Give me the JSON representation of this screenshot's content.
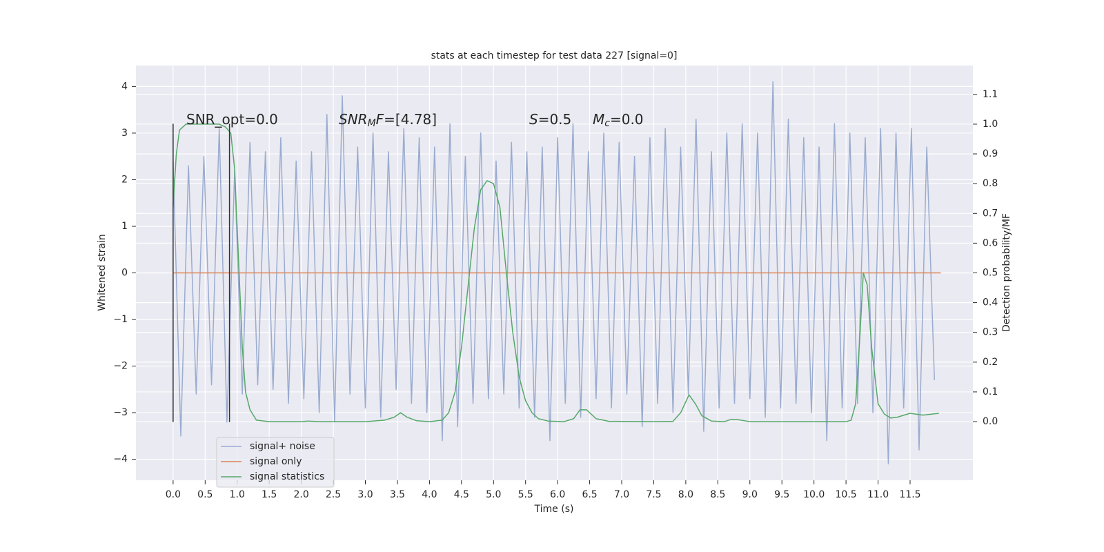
{
  "chart_data": {
    "type": "line",
    "title": "stats at each timestep for test data 227 [signal=0]",
    "x_label": "Time (s)",
    "y_label": "Whitened strain",
    "y2_label": "Detection probability/MF",
    "xlim": [
      -0.58,
      12.48
    ],
    "ylim": [
      -4.45,
      4.45
    ],
    "y2lim": [
      -0.197,
      1.197
    ],
    "grid": true,
    "background": "#eaeaf2",
    "legend": "lower left",
    "xticks": [
      {
        "value": 0,
        "label": "0.0"
      },
      0.5,
      {
        "value": 1,
        "label": "1.0"
      },
      1.5,
      {
        "value": 2,
        "label": "2.0"
      },
      2.5,
      {
        "value": 3,
        "label": "3.0"
      },
      3.5,
      {
        "value": 4,
        "label": "4.0"
      },
      4.5,
      {
        "value": 5,
        "label": "5.0"
      },
      5.5,
      {
        "value": 6,
        "label": "6.0"
      },
      6.5,
      {
        "value": 7,
        "label": "7.0"
      },
      7.5,
      {
        "value": 8,
        "label": "8.0"
      },
      8.5,
      {
        "value": 9,
        "label": "9.0"
      },
      9.5,
      {
        "value": 10,
        "label": "10.0"
      },
      10.5,
      {
        "value": 11,
        "label": "11.0"
      },
      11.5
    ],
    "yticks": [
      {
        "value": -4,
        "label": "−4"
      },
      {
        "value": -3,
        "label": "−3"
      },
      {
        "value": -2,
        "label": "−2"
      },
      {
        "value": -1,
        "label": "−1"
      },
      0,
      1,
      2,
      3,
      4
    ],
    "y2ticks": [
      {
        "value": 0,
        "label": "0.0"
      },
      0.1,
      0.2,
      0.3,
      0.4,
      0.5,
      0.6,
      0.7,
      0.8,
      0.9,
      {
        "value": 1,
        "label": "1.0"
      },
      1.1
    ],
    "annotations": [
      {
        "parts": [
          {
            "text": "SNR_opt=0.0"
          }
        ]
      },
      {
        "parts": [
          {
            "text": "SNR",
            "style": "italic"
          },
          {
            "text": "M",
            "style": "sub"
          },
          {
            "text": "F",
            "style": "italic"
          },
          {
            "text": "=[4.78]"
          }
        ]
      },
      {
        "parts": [
          {
            "text": "S",
            "style": "italic"
          },
          {
            "text": "=0.5"
          }
        ]
      },
      {
        "parts": [
          {
            "text": "M",
            "style": "italic"
          },
          {
            "text": "c",
            "style": "sub"
          },
          {
            "text": "=0.0"
          }
        ]
      }
    ],
    "markers": {
      "x": [
        0,
        0.88
      ],
      "y": [
        -3.2,
        3.2
      ],
      "color": "#333333"
    },
    "series": [
      {
        "name": "signal+ noise",
        "color": "#9aaccf",
        "x": [
          0,
          0.12,
          0.24,
          0.36,
          0.48,
          0.6,
          0.72,
          0.84,
          0.96,
          1.08,
          1.2,
          1.32,
          1.44,
          1.56,
          1.68,
          1.8,
          1.92,
          2.04,
          2.16,
          2.28,
          2.4,
          2.52,
          2.64,
          2.76,
          2.88,
          3,
          3.12,
          3.24,
          3.36,
          3.48,
          3.6,
          3.72,
          3.84,
          3.96,
          4.08,
          4.2,
          4.32,
          4.44,
          4.56,
          4.68,
          4.8,
          4.92,
          5.04,
          5.16,
          5.28,
          5.4,
          5.52,
          5.64,
          5.76,
          5.88,
          6,
          6.12,
          6.24,
          6.36,
          6.48,
          6.6,
          6.72,
          6.84,
          6.96,
          7.08,
          7.2,
          7.32,
          7.44,
          7.56,
          7.68,
          7.8,
          7.92,
          8.04,
          8.16,
          8.28,
          8.4,
          8.52,
          8.64,
          8.76,
          8.88,
          9,
          9.12,
          9.24,
          9.36,
          9.48,
          9.6,
          9.72,
          9.84,
          9.96,
          10.08,
          10.2,
          10.32,
          10.44,
          10.56,
          10.68,
          10.8,
          10.92,
          11.04,
          11.16,
          11.28,
          11.4,
          11.52,
          11.64,
          11.76,
          11.88
        ],
        "values": [
          2.4,
          -3.5,
          2.3,
          -2.6,
          2.5,
          -2.4,
          3.1,
          -3.2,
          2.2,
          -2.6,
          2.8,
          -2.4,
          2.6,
          -2.5,
          2.9,
          -2.8,
          2.4,
          -2.7,
          2.6,
          -3.0,
          3.4,
          -3.2,
          3.8,
          -2.6,
          2.7,
          -2.9,
          3.0,
          -3.1,
          2.6,
          -2.5,
          3.1,
          -2.8,
          2.9,
          -3.0,
          2.7,
          -3.6,
          3.2,
          -3.3,
          2.5,
          -2.8,
          3.0,
          -2.7,
          2.4,
          -2.6,
          2.8,
          -2.9,
          2.6,
          -3.1,
          2.7,
          -3.6,
          2.9,
          -2.8,
          3.2,
          -3.1,
          2.6,
          -2.7,
          3.0,
          -2.9,
          2.8,
          -2.6,
          2.5,
          -3.3,
          2.9,
          -2.8,
          3.1,
          -3.0,
          2.7,
          -2.6,
          3.3,
          -3.4,
          2.6,
          -2.9,
          3.0,
          -2.8,
          3.2,
          -2.7,
          3.0,
          -3.1,
          4.1,
          -2.9,
          3.3,
          -2.8,
          2.9,
          -3.0,
          2.7,
          -3.6,
          3.2,
          -2.9,
          3.0,
          -2.8,
          2.9,
          -3.0,
          3.1,
          -4.1,
          3.0,
          -2.9,
          3.1,
          -3.8,
          2.7,
          -2.3
        ]
      },
      {
        "name": "signal only",
        "color": "#dd8452",
        "x": [
          0,
          11.98
        ],
        "values": [
          0,
          0
        ]
      },
      {
        "name": "signal statistics",
        "color": "#55a868",
        "axis": "y2",
        "x": [
          0,
          0.05,
          0.1,
          0.2,
          0.35,
          0.55,
          0.72,
          0.82,
          0.9,
          0.96,
          1.02,
          1.08,
          1.13,
          1.2,
          1.3,
          1.5,
          2.0,
          2.1,
          2.3,
          3.0,
          3.3,
          3.45,
          3.55,
          3.65,
          3.8,
          4.0,
          4.2,
          4.3,
          4.4,
          4.5,
          4.6,
          4.7,
          4.8,
          4.9,
          5.0,
          5.1,
          5.2,
          5.3,
          5.4,
          5.5,
          5.6,
          5.7,
          5.85,
          6.1,
          6.25,
          6.35,
          6.45,
          6.6,
          6.8,
          7.5,
          7.8,
          7.92,
          8.05,
          8.15,
          8.25,
          8.4,
          8.6,
          8.7,
          8.8,
          9.0,
          9.5,
          10.0,
          10.5,
          10.58,
          10.65,
          10.72,
          10.77,
          10.83,
          10.9,
          11.0,
          11.1,
          11.2,
          11.3,
          11.5,
          11.7,
          11.95
        ],
        "values": [
          0.72,
          0.9,
          0.98,
          1.0,
          1.0,
          1.0,
          1.0,
          0.99,
          0.97,
          0.85,
          0.55,
          0.25,
          0.1,
          0.04,
          0.005,
          0.0,
          0.0,
          0.002,
          0.0,
          0.0,
          0.005,
          0.015,
          0.03,
          0.015,
          0.003,
          0.0,
          0.005,
          0.03,
          0.1,
          0.25,
          0.45,
          0.65,
          0.78,
          0.81,
          0.8,
          0.72,
          0.5,
          0.3,
          0.15,
          0.07,
          0.03,
          0.01,
          0.002,
          0.0,
          0.01,
          0.04,
          0.04,
          0.01,
          0.001,
          0.0,
          0.001,
          0.03,
          0.09,
          0.06,
          0.02,
          0.002,
          0.0,
          0.007,
          0.007,
          0.0,
          0.0,
          0.0,
          0.0,
          0.005,
          0.06,
          0.3,
          0.5,
          0.46,
          0.25,
          0.06,
          0.025,
          0.012,
          0.015,
          0.028,
          0.022,
          0.028
        ]
      }
    ]
  }
}
